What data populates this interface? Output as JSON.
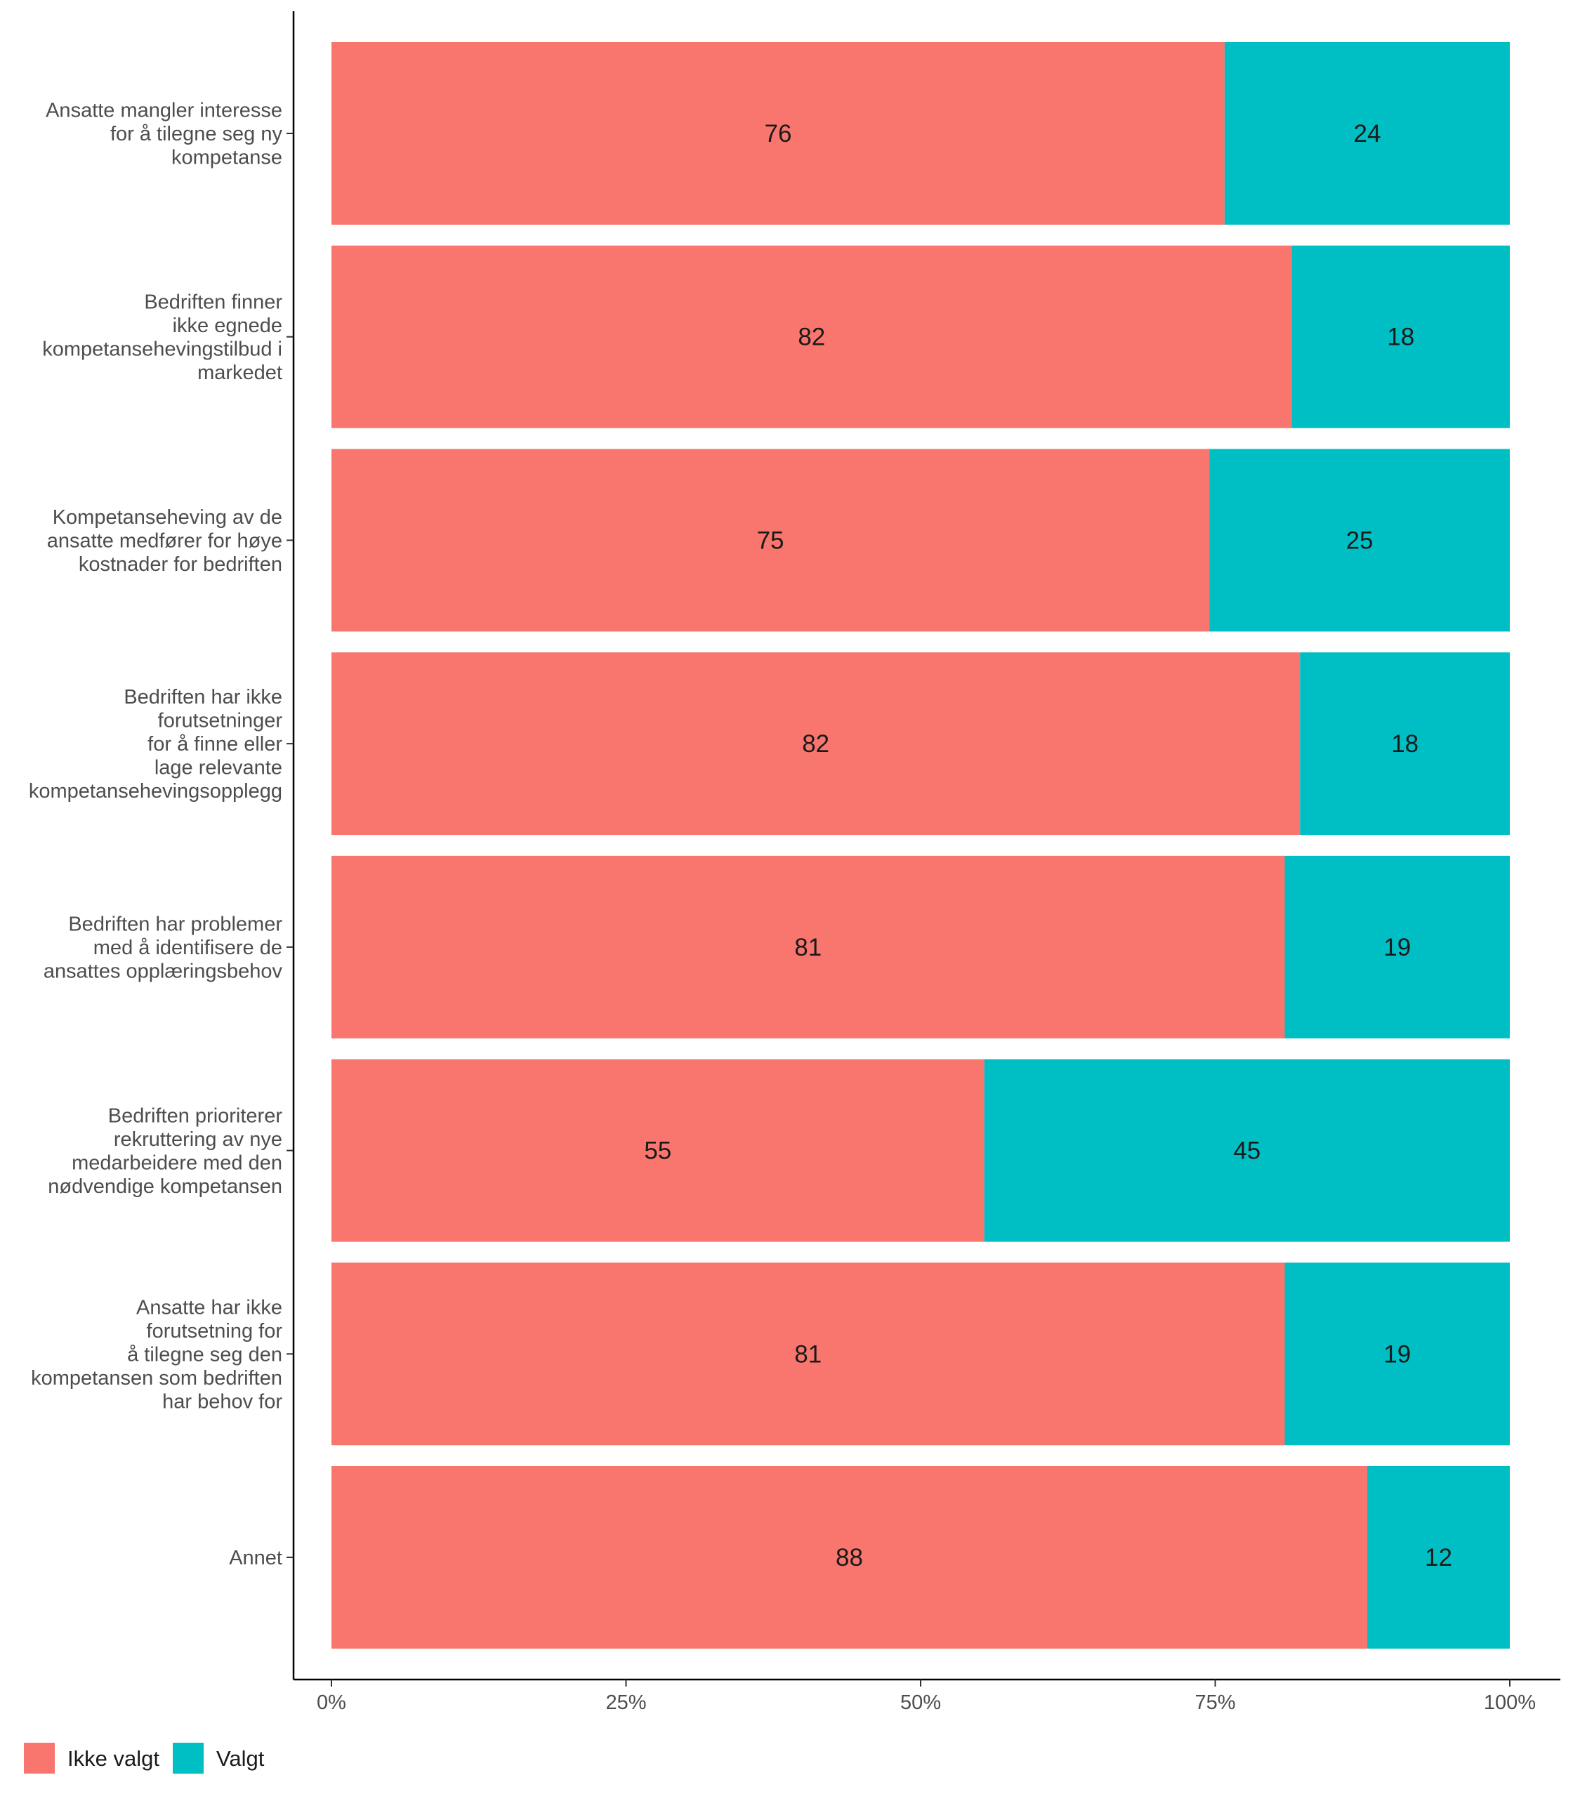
{
  "chart_data": {
    "type": "bar",
    "orientation": "horizontal",
    "stacking": "percent",
    "categories": [
      [
        "Ansatte mangler interesse",
        "for å tilegne seg ny",
        "kompetanse"
      ],
      [
        "Bedriften finner",
        "ikke egnede",
        "kompetansehevingstilbud i",
        "markedet"
      ],
      [
        "Kompetanseheving av de",
        "ansatte medfører for høye",
        "kostnader for bedriften"
      ],
      [
        "Bedriften har ikke",
        "forutsetninger",
        "for å finne eller",
        "lage relevante",
        "kompetansehevingsopplegg"
      ],
      [
        "Bedriften har problemer",
        "med å identifisere de",
        "ansattes opplæringsbehov"
      ],
      [
        "Bedriften prioriterer",
        "rekruttering av nye",
        "medarbeidere med den",
        "nødvendige kompetansen"
      ],
      [
        "Ansatte har ikke",
        "forutsetning for",
        "å tilegne seg den",
        "kompetansen som bedriften",
        "har behov for"
      ],
      [
        "Annet"
      ]
    ],
    "series": [
      {
        "name": "Ikke valgt",
        "color": "#F8766D",
        "values": [
          75.8,
          81.5,
          74.5,
          82.2,
          80.9,
          55.4,
          80.9,
          87.9
        ],
        "labels": [
          "76",
          "82",
          "75",
          "82",
          "81",
          "55",
          "81",
          "88"
        ]
      },
      {
        "name": "Valgt",
        "color": "#00BFC4",
        "values": [
          24.2,
          18.5,
          25.5,
          17.8,
          19.1,
          44.6,
          19.1,
          12.1
        ],
        "labels": [
          "24",
          "18",
          "25",
          "18",
          "19",
          "45",
          "19",
          "12"
        ]
      }
    ],
    "x_ticks": [
      "0%",
      "25%",
      "50%",
      "75%",
      "100%"
    ],
    "x_tick_values": [
      0,
      25,
      50,
      75,
      100
    ],
    "xlim": [
      0,
      100
    ],
    "xlabel": "",
    "ylabel": "",
    "title": "",
    "grid": false,
    "legend_position": "bottom-left",
    "legend": [
      "Ikke valgt",
      "Valgt"
    ]
  }
}
